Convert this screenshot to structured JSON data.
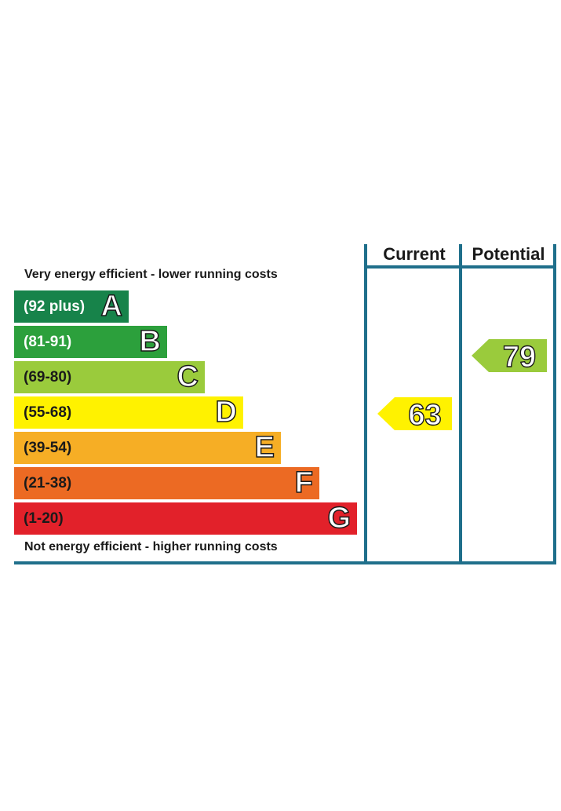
{
  "chart_data": {
    "type": "bar",
    "top_caption": "Very energy efficient - lower running costs",
    "bottom_caption": "Not energy efficient - higher running costs",
    "columns": {
      "current": "Current",
      "potential": "Potential"
    },
    "bands": [
      {
        "range": "(92 plus)",
        "letter": "A",
        "color": "#17834a",
        "text_color": "#ffffff"
      },
      {
        "range": "(81-91)",
        "letter": "B",
        "color": "#2ca03c",
        "text_color": "#ffffff"
      },
      {
        "range": "(69-80)",
        "letter": "C",
        "color": "#9acb3c",
        "text_color": "#1a1a1a"
      },
      {
        "range": "(55-68)",
        "letter": "D",
        "color": "#fff200",
        "text_color": "#1a1a1a"
      },
      {
        "range": "(39-54)",
        "letter": "E",
        "color": "#f6ae25",
        "text_color": "#1a1a1a"
      },
      {
        "range": "(21-38)",
        "letter": "F",
        "color": "#ec6a23",
        "text_color": "#1a1a1a"
      },
      {
        "range": "(1-20)",
        "letter": "G",
        "color": "#e2212a",
        "text_color": "#1a1a1a"
      }
    ],
    "current": {
      "value": "63",
      "band": "D",
      "color": "#fff200"
    },
    "potential": {
      "value": "79",
      "band": "C",
      "color": "#9acb3c"
    }
  }
}
